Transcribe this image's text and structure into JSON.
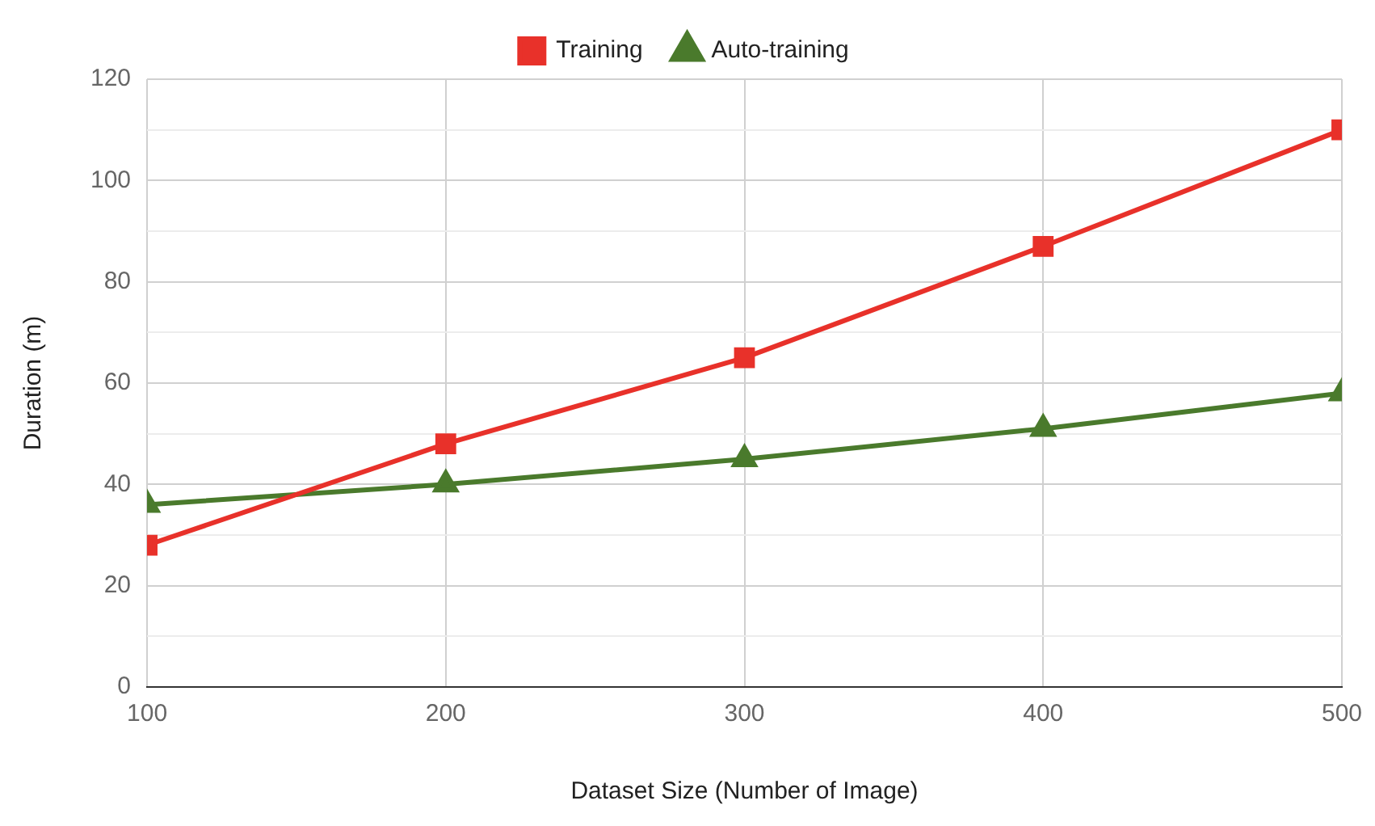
{
  "chart_data": {
    "type": "line",
    "xlabel": "Dataset Size (Number of Image)",
    "ylabel": "Duration (m)",
    "x": [
      100,
      200,
      300,
      400,
      500
    ],
    "series": [
      {
        "name": "Training",
        "color": "#e8312a",
        "marker": "square",
        "values": [
          28,
          48,
          65,
          87,
          110
        ]
      },
      {
        "name": "Auto-training",
        "color": "#4a7a2c",
        "marker": "triangle",
        "values": [
          36,
          40,
          45,
          51,
          58
        ]
      }
    ],
    "xlim": [
      100,
      500
    ],
    "xticks": [
      100,
      200,
      300,
      400,
      500
    ],
    "ylim": [
      0,
      120
    ],
    "yticks": [
      0,
      {
        "value": 10,
        "label": null
      },
      20,
      {
        "value": 30,
        "label": null
      },
      40,
      {
        "value": 50,
        "label": null
      },
      60,
      {
        "value": 70,
        "label": null
      },
      80,
      {
        "value": 90,
        "label": null
      },
      100,
      {
        "value": 110,
        "label": null
      },
      120
    ],
    "grid": true,
    "legend": "top"
  }
}
